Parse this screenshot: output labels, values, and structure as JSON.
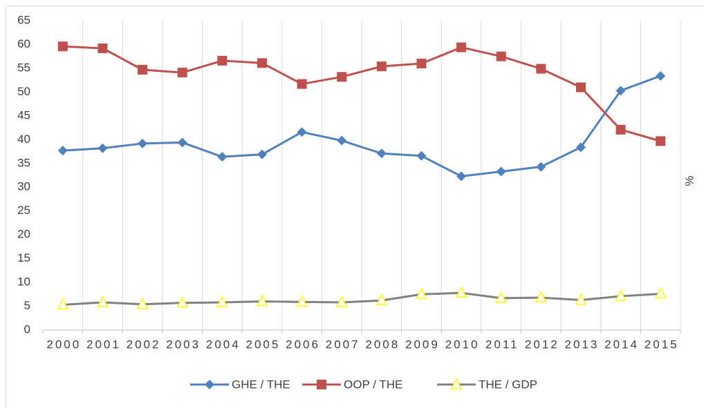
{
  "chart_data": {
    "type": "line",
    "categories": [
      "2000",
      "2001",
      "2002",
      "2003",
      "2004",
      "2005",
      "2006",
      "2007",
      "2008",
      "2009",
      "2010",
      "2011",
      "2012",
      "2013",
      "2014",
      "2015"
    ],
    "series": [
      {
        "name": "GHE / THE",
        "color": "#4f81bd",
        "marker": "diamond",
        "values": [
          37.7,
          38.2,
          39.2,
          39.4,
          36.4,
          36.9,
          41.6,
          39.8,
          37.1,
          36.6,
          32.3,
          33.3,
          34.3,
          38.4,
          50.3,
          53.4
        ]
      },
      {
        "name": "OOP / THE",
        "color": "#c0504d",
        "marker": "square",
        "values": [
          59.6,
          59.2,
          54.7,
          54.1,
          56.6,
          56.1,
          51.7,
          53.2,
          55.4,
          56.0,
          59.4,
          57.5,
          54.9,
          51.0,
          42.1,
          39.7
        ]
      },
      {
        "name": "THE / GDP",
        "color": "#808080",
        "marker": "triangle",
        "marker_color": "#ffff00",
        "values": [
          5.3,
          5.8,
          5.4,
          5.7,
          5.8,
          6.0,
          5.9,
          5.8,
          6.2,
          7.5,
          7.8,
          6.7,
          6.8,
          6.3,
          7.1,
          7.6
        ]
      }
    ],
    "y_label": "%",
    "ylim": [
      0,
      65
    ],
    "yticks": [
      0,
      5,
      10,
      15,
      20,
      25,
      30,
      35,
      40,
      45,
      50,
      55,
      60,
      65
    ],
    "grid": "vertical",
    "legend": "bottom"
  }
}
